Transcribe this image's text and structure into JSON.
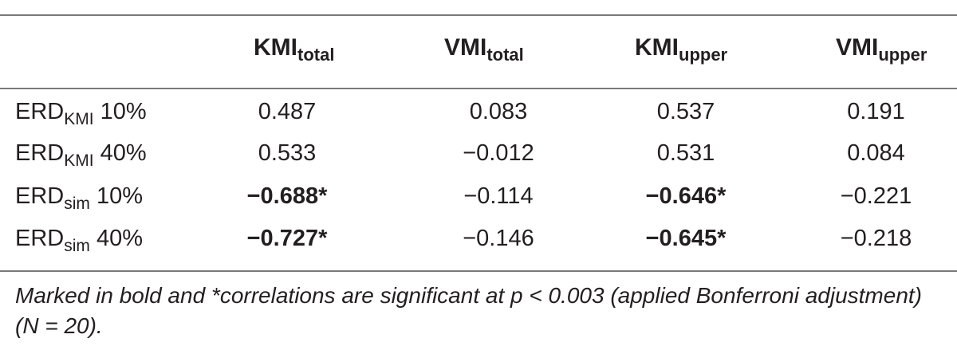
{
  "table": {
    "headers": [
      {
        "base": "KMI",
        "sub": "total"
      },
      {
        "base": "VMI",
        "sub": "total"
      },
      {
        "base": "KMI",
        "sub": "upper"
      },
      {
        "base": "VMI",
        "sub": "upper"
      }
    ],
    "rows": [
      {
        "label": {
          "base": "ERD",
          "sub": "KMI",
          "suffix": " 10%"
        },
        "values": [
          {
            "text": "0.487",
            "bold": false
          },
          {
            "text": "0.083",
            "bold": false
          },
          {
            "text": "0.537",
            "bold": false
          },
          {
            "text": "0.191",
            "bold": false
          }
        ]
      },
      {
        "label": {
          "base": "ERD",
          "sub": "KMI",
          "suffix": " 40%"
        },
        "values": [
          {
            "text": "0.533",
            "bold": false
          },
          {
            "text": "−0.012",
            "bold": false
          },
          {
            "text": "0.531",
            "bold": false
          },
          {
            "text": "0.084",
            "bold": false
          }
        ]
      },
      {
        "label": {
          "base": "ERD",
          "sub": "sim",
          "suffix": " 10%"
        },
        "values": [
          {
            "text": "−0.688*",
            "bold": true
          },
          {
            "text": "−0.114",
            "bold": false
          },
          {
            "text": "−0.646*",
            "bold": true
          },
          {
            "text": "−0.221",
            "bold": false
          }
        ]
      },
      {
        "label": {
          "base": "ERD",
          "sub": "sim",
          "suffix": " 40%"
        },
        "values": [
          {
            "text": "−0.727*",
            "bold": true
          },
          {
            "text": "−0.146",
            "bold": false
          },
          {
            "text": "−0.645*",
            "bold": true
          },
          {
            "text": "−0.218",
            "bold": false
          }
        ]
      }
    ]
  },
  "footnote": "Marked in bold and *correlations are significant at p < 0.003 (applied Bonferroni adjustment) (N = 20)."
}
